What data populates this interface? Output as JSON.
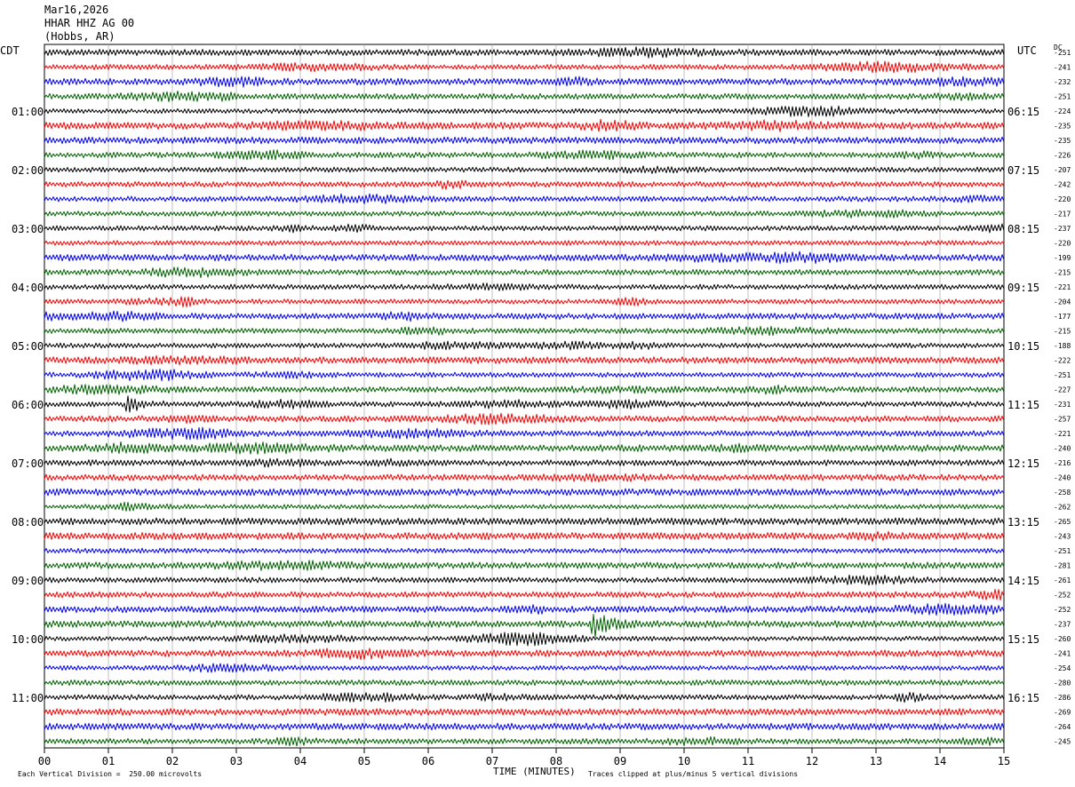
{
  "header": {
    "date": "Mar16,2026",
    "station": "HHAR HHZ AG 00",
    "location": "(Hobbs, AR)"
  },
  "left_axis_label": "CDT",
  "right_axis_label": "UTC",
  "dc_label": "DC",
  "footer": {
    "scale_note": "Each Vertical Division =  250.00 microvolts",
    "xlabel": "TIME (MINUTES)",
    "clip_note": "Traces clipped at plus/minus 5 vertical divisions"
  },
  "colors": {
    "trace_cycle": [
      "#000000",
      "#ff0000",
      "#0000ff",
      "#006400"
    ],
    "grid": "#999999"
  },
  "chart_data": {
    "type": "line",
    "title": "",
    "xlabel": "TIME (MINUTES)",
    "xlim": [
      0,
      15
    ],
    "x_ticks": [
      "00",
      "01",
      "02",
      "03",
      "04",
      "05",
      "06",
      "07",
      "08",
      "09",
      "10",
      "11",
      "12",
      "13",
      "14",
      "15"
    ],
    "trace_count": 48,
    "traces_per_hour": 4,
    "left_hour_labels": [
      "01:00",
      "02:00",
      "03:00",
      "04:00",
      "05:00",
      "06:00",
      "07:00",
      "08:00",
      "09:00",
      "10:00",
      "11:00"
    ],
    "right_hour_labels": [
      "06:15",
      "07:15",
      "08:15",
      "09:15",
      "10:15",
      "11:15",
      "12:15",
      "13:15",
      "14:15",
      "15:15",
      "16:15"
    ],
    "dc_offsets": [
      "-251",
      "-241",
      "-232",
      "-251",
      "-224",
      "-235",
      "-235",
      "-226",
      "-207",
      "-242",
      "-220",
      "-217",
      "-237",
      "-220",
      "-199",
      "-215",
      "-221",
      "-204",
      "-177",
      "-215",
      "-188",
      "-222",
      "-251",
      "-227",
      "-231",
      "-257",
      "-221",
      "-240",
      "-216",
      "-240",
      "-258",
      "-262",
      "-265",
      "-243",
      "-251",
      "-281",
      "-261",
      "-252",
      "-252",
      "-237",
      "-260",
      "-241",
      "-254",
      "-280",
      "-286",
      "-269",
      "-264",
      "-245"
    ],
    "events": [
      {
        "trace": 39,
        "minute": 8.6,
        "note": "large signal"
      },
      {
        "trace": 24,
        "minute": 1.3,
        "note": "spike"
      }
    ]
  }
}
